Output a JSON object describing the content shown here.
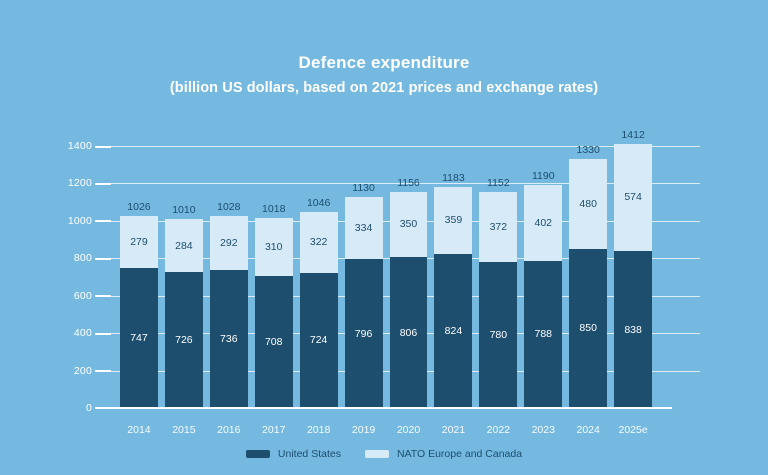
{
  "title": "Defence expenditure",
  "subtitle": "(billion US dollars, based on 2021 prices and exchange rates)",
  "colors": {
    "background": "#75b9e0",
    "us_bar": "#1d4e6e",
    "europe_bar": "#d7eaf7",
    "grid": "#ffffff",
    "axis_text": "#ffffff",
    "value_text_dark": "#1d4e6e",
    "value_text_light": "#ffffff"
  },
  "chart_data": {
    "type": "bar",
    "stacked": true,
    "title": "Defence expenditure",
    "subtitle": "(billion US dollars, based on 2021 prices and exchange rates)",
    "categories": [
      "2014",
      "2015",
      "2016",
      "2017",
      "2018",
      "2019",
      "2020",
      "2021",
      "2022",
      "2023",
      "2024",
      "2025e"
    ],
    "series": [
      {
        "name": "United States",
        "color_key": "us_bar",
        "values": [
          747,
          726,
          736,
          708,
          724,
          796,
          806,
          824,
          780,
          788,
          850,
          838
        ]
      },
      {
        "name": "NATO Europe and Canada",
        "color_key": "europe_bar",
        "values": [
          279,
          284,
          292,
          310,
          322,
          334,
          350,
          359,
          372,
          402,
          480,
          574
        ]
      }
    ],
    "totals": [
      1026,
      1010,
      1028,
      1018,
      1046,
      1130,
      1156,
      1183,
      1152,
      1190,
      1330,
      1412
    ],
    "ylim": [
      0,
      1400
    ],
    "yticks": [
      0,
      200,
      400,
      600,
      800,
      1000,
      1200,
      1400
    ],
    "grid": true,
    "legend_position": "bottom"
  }
}
